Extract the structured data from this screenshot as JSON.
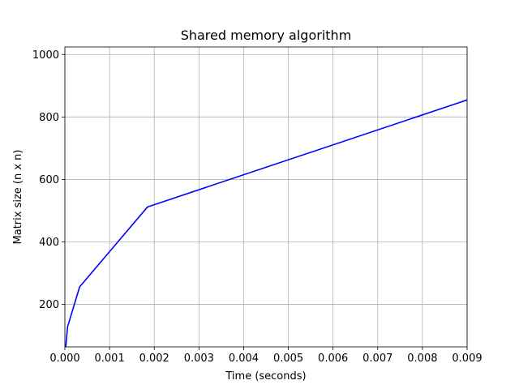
{
  "chart_data": {
    "type": "line",
    "title": "Shared memory algorithm",
    "xlabel": "Time (seconds)",
    "ylabel": "Matrix size (n x n)",
    "xlim": [
      0,
      0.009
    ],
    "ylim": [
      64,
      1024
    ],
    "grid": true,
    "x_ticks": [
      0.0,
      0.001,
      0.002,
      0.003,
      0.004,
      0.005,
      0.006,
      0.007,
      0.008,
      0.009
    ],
    "x_tick_labels": [
      "0.000",
      "0.001",
      "0.002",
      "0.003",
      "0.004",
      "0.005",
      "0.006",
      "0.007",
      "0.008",
      "0.009"
    ],
    "y_ticks": [
      200,
      400,
      600,
      800,
      1000
    ],
    "y_tick_labels": [
      "200",
      "400",
      "600",
      "800",
      "1000"
    ],
    "series": [
      {
        "color": "#0000ff",
        "x": [
          2e-05,
          6e-05,
          0.00033,
          0.00185,
          0.0092
        ],
        "y": [
          64,
          128,
          256,
          512,
          864
        ]
      }
    ]
  }
}
